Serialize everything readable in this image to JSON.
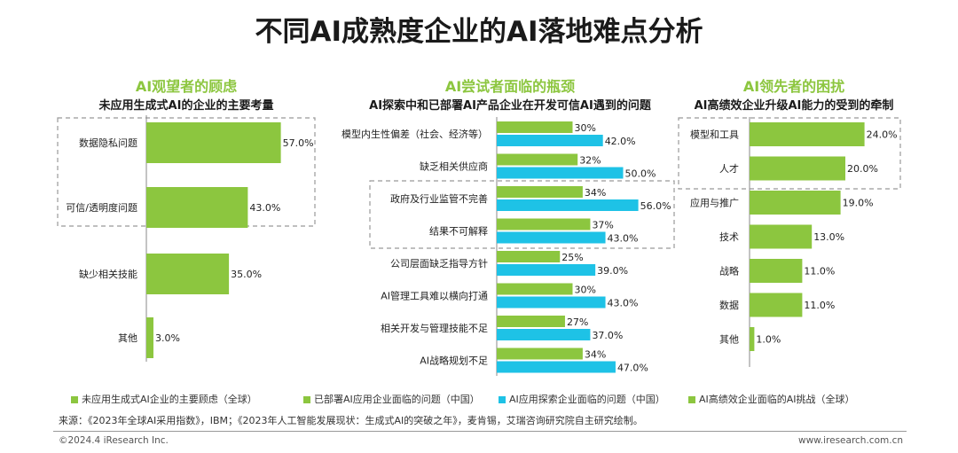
{
  "title": "不同AI成熟度企业的AI落地难点分析",
  "colors": {
    "green": "#8cc63f",
    "cyan": "#1ec2e6",
    "title_green": "#8cc63f"
  },
  "chart_data": [
    {
      "type": "bar",
      "orientation": "horizontal",
      "title": "AI观望者的顾虑",
      "subtitle": "未应用生成式AI的企业的主要考量",
      "categories": [
        "数据隐私问题",
        "可信/透明度问题",
        "缺少相关技能",
        "其他"
      ],
      "series": [
        {
          "values": [
            57.0,
            43.0,
            35.0,
            3.0
          ]
        }
      ],
      "value_labels": [
        "57.0%",
        "43.0%",
        "35.0%",
        "3.0%"
      ],
      "highlighted": [
        "数据隐私问题",
        "可信/透明度问题"
      ]
    },
    {
      "type": "bar",
      "orientation": "horizontal",
      "title": "AI尝试者面临的瓶颈",
      "subtitle": "AI探索中和已部署AI产品企业在开发可信AI遇到的问题",
      "categories": [
        "模型内生性偏差（社会、经济等）",
        "缺乏相关供应商",
        "政府及行业监管不完善",
        "结果不可解释",
        "公司层面缺乏指导方针",
        "AI管理工具难以横向打通",
        "相关开发与管理技能不足",
        "AI战略规划不足"
      ],
      "series": [
        {
          "values": [
            30,
            32,
            34,
            37,
            25,
            30,
            27,
            34
          ],
          "labels": [
            "30%",
            "32%",
            "34%",
            "37%",
            "25%",
            "30%",
            "27%",
            "34%"
          ]
        },
        {
          "values": [
            42.0,
            50.0,
            56.0,
            43.0,
            39.0,
            43.0,
            37.0,
            47.0
          ],
          "labels": [
            "42.0%",
            "50.0%",
            "56.0%",
            "43.0%",
            "39.0%",
            "43.0%",
            "37.0%",
            "47.0%"
          ]
        }
      ],
      "highlighted": [
        "政府及行业监管不完善",
        "结果不可解释"
      ]
    },
    {
      "type": "bar",
      "orientation": "horizontal",
      "title": "AI领先者的困扰",
      "subtitle": "AI高绩效企业升级AI能力的受到的牵制",
      "categories": [
        "模型和工具",
        "人才",
        "应用与推广",
        "技术",
        "战略",
        "数据",
        "其他"
      ],
      "series": [
        {
          "values": [
            24.0,
            20.0,
            19.0,
            13.0,
            11.0,
            11.0,
            1.0
          ]
        }
      ],
      "value_labels": [
        "24.0%",
        "20.0%",
        "19.0%",
        "13.0%",
        "11.0%",
        "11.0%",
        "1.0%"
      ],
      "highlighted": [
        "模型和工具",
        "人才"
      ]
    }
  ],
  "legend": [
    {
      "label": "未应用生成式AI企业的主要顾虑（全球）",
      "color": "#8cc63f"
    },
    {
      "label": "已部署AI应用企业面临的问题（中国）",
      "color": "#8cc63f"
    },
    {
      "label": "AI应用探索企业面临的问题（中国）",
      "color": "#1ec2e6"
    },
    {
      "label": "AI高绩效企业面临的AI挑战（全球）",
      "color": "#8cc63f"
    }
  ],
  "source": "来源：《2023年全球AI采用指数》，IBM；《2023年人工智能发展现状：生成式AI的突破之年》，麦肯锡，艾瑞咨询研究院自主研究绘制。",
  "copyright": "©2024.4 iResearch Inc.",
  "website": "www.iresearch.com.cn"
}
